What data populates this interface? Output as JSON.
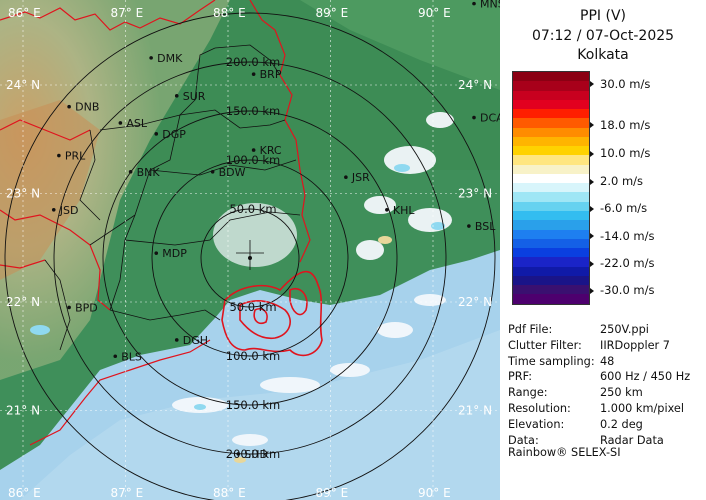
{
  "header": {
    "product": "PPI (V)",
    "datetime": "07:12 / 07-Oct-2025",
    "station": "Kolkata"
  },
  "scale": {
    "unit": "m/s",
    "colors": [
      "#8b0013",
      "#a8001a",
      "#c8001f",
      "#e2001f",
      "#ff1e00",
      "#ff5a00",
      "#ff8c00",
      "#ffb400",
      "#ffd200",
      "#ffe680",
      "#f8f2c8",
      "#ffffff",
      "#d8f5fb",
      "#9fe6f5",
      "#66d2f0",
      "#33bdf0",
      "#2aa0ea",
      "#1e7ff0",
      "#1460e6",
      "#0a3fe0",
      "#1a24c8",
      "#101aa8",
      "#1a1488",
      "#3a1070",
      "#4d006e"
    ],
    "ticks": [
      {
        "label": "30.0 m/s",
        "frac": 0.058
      },
      {
        "label": "18.0 m/s",
        "frac": 0.235
      },
      {
        "label": "10.0 m/s",
        "frac": 0.355
      },
      {
        "label": "2.0 m/s",
        "frac": 0.475
      },
      {
        "label": "-6.0 m/s",
        "frac": 0.59
      },
      {
        "label": "-14.0 m/s",
        "frac": 0.708
      },
      {
        "label": "-22.0 m/s",
        "frac": 0.825
      },
      {
        "label": "-30.0 m/s",
        "frac": 0.942
      }
    ]
  },
  "info": [
    {
      "k": "Pdf File:",
      "v": "250V.ppi"
    },
    {
      "k": "Clutter Filter:",
      "v": "IIRDoppler 7"
    },
    {
      "k": "Time sampling:",
      "v": "48"
    },
    {
      "k": "PRF:",
      "v": "600 Hz / 450 Hz"
    },
    {
      "k": "Range:",
      "v": "250 km"
    },
    {
      "k": "Resolution:",
      "v": "1.000 km/pixel"
    },
    {
      "k": "Elevation:",
      "v": "0.2 deg"
    },
    {
      "k": "Data:",
      "v": "Radar Data"
    }
  ],
  "credit": "Rainbow® SELEX-SI",
  "map": {
    "longitudes": [
      {
        "label": "86° E",
        "lon": 86
      },
      {
        "label": "87° E",
        "lon": 87
      },
      {
        "label": "88° E",
        "lon": 88
      },
      {
        "label": "89° E",
        "lon": 89
      },
      {
        "label": "90° E",
        "lon": 90
      }
    ],
    "latitudes": [
      {
        "label": "24° N",
        "lat": 24
      },
      {
        "label": "23° N",
        "lat": 23
      },
      {
        "label": "22° N",
        "lat": 22
      },
      {
        "label": "21° N",
        "lat": 21
      }
    ],
    "ring_labels": [
      "50.0 km",
      "100.0 km",
      "150.0 km",
      "200.0 km"
    ],
    "cities": [
      {
        "name": "DMK",
        "lon": 87.25,
        "lat": 24.25
      },
      {
        "name": "BRP",
        "lon": 88.25,
        "lat": 24.1
      },
      {
        "name": "MNS",
        "lon": 90.4,
        "lat": 24.75
      },
      {
        "name": "DNB",
        "lon": 86.45,
        "lat": 23.8
      },
      {
        "name": "SUR",
        "lon": 87.5,
        "lat": 23.9
      },
      {
        "name": "ASL",
        "lon": 86.95,
        "lat": 23.65
      },
      {
        "name": "DGP",
        "lon": 87.3,
        "lat": 23.55
      },
      {
        "name": "DCA",
        "lon": 90.4,
        "lat": 23.7
      },
      {
        "name": "KRC",
        "lon": 88.25,
        "lat": 23.4
      },
      {
        "name": "PRL",
        "lon": 86.35,
        "lat": 23.35
      },
      {
        "name": "BNK",
        "lon": 87.05,
        "lat": 23.2
      },
      {
        "name": "BDW",
        "lon": 87.85,
        "lat": 23.2
      },
      {
        "name": "JSR",
        "lon": 89.15,
        "lat": 23.15
      },
      {
        "name": "JSD",
        "lon": 86.3,
        "lat": 22.85
      },
      {
        "name": "KHL",
        "lon": 89.55,
        "lat": 22.85
      },
      {
        "name": "BSL",
        "lon": 90.35,
        "lat": 22.7
      },
      {
        "name": "MDP",
        "lon": 87.3,
        "lat": 22.45
      },
      {
        "name": "BPD",
        "lon": 86.45,
        "lat": 21.95
      },
      {
        "name": "DGH",
        "lon": 87.5,
        "lat": 21.65
      },
      {
        "name": "BLS",
        "lon": 86.9,
        "lat": 21.5
      },
      {
        "name": "SHD",
        "lon": 88.1,
        "lat": 20.6
      }
    ]
  }
}
